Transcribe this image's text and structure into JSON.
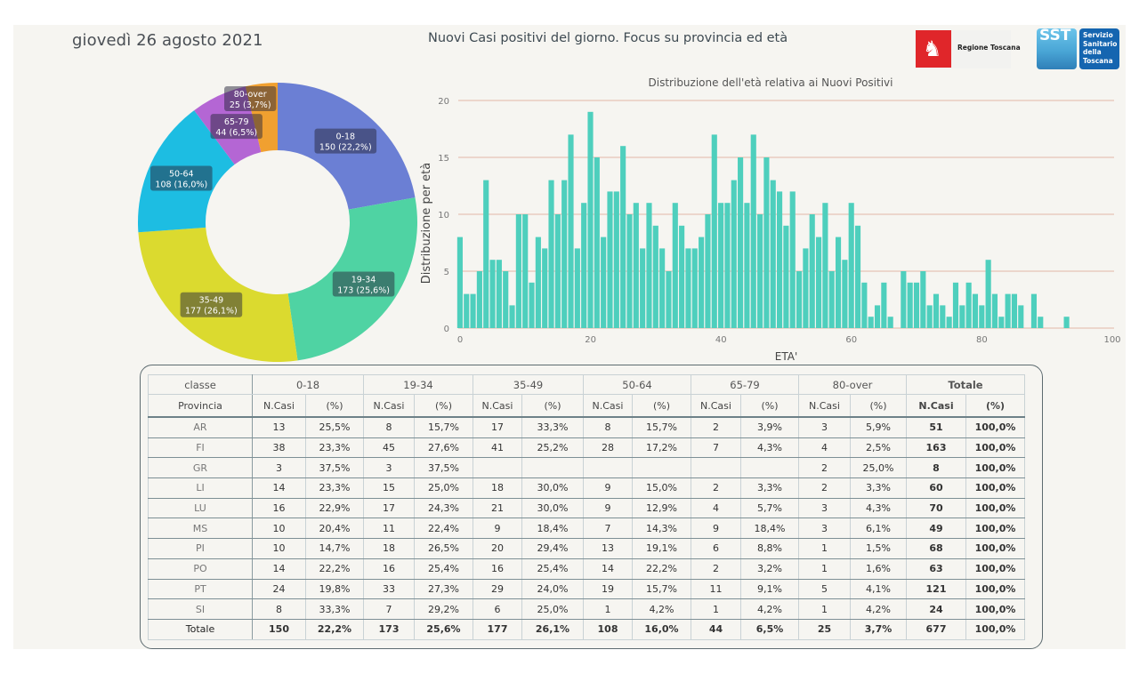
{
  "header": {
    "date": "giovedì 26 agosto 2021",
    "title": "Nuovi Casi positivi del giorno. Focus su provincia ed età",
    "logo_region": "Regione Toscana",
    "logo_sst_short": "SST",
    "logo_sst_full": "Servizio\nSanitario\ndella\nToscana"
  },
  "chart_data": [
    {
      "type": "pie",
      "variant": "donut",
      "start": "top",
      "direction": "clockwise",
      "slices": [
        {
          "label": "0-18",
          "value": 150,
          "pct": "22,2%",
          "color": "#6b7fd4"
        },
        {
          "label": "19-34",
          "value": 173,
          "pct": "25,6%",
          "color": "#4fd3a3"
        },
        {
          "label": "35-49",
          "value": 177,
          "pct": "26,1%",
          "color": "#dbda2f"
        },
        {
          "label": "50-64",
          "value": 108,
          "pct": "16,0%",
          "color": "#1dbde2"
        },
        {
          "label": "65-79",
          "value": 44,
          "pct": "6,5%",
          "color": "#b466d4"
        },
        {
          "label": "80-over",
          "value": 25,
          "pct": "3,7%",
          "color": "#f0a030"
        }
      ]
    },
    {
      "type": "bar",
      "title": "Distribuzione dell'età relativa ai Nuovi Positivi",
      "xlabel": "ETA'",
      "ylabel": "Distribuzione per età",
      "xlim": [
        0,
        100
      ],
      "ylim": [
        0,
        20
      ],
      "xticks": [
        0,
        20,
        40,
        60,
        80,
        100
      ],
      "yticks": [
        0,
        5,
        10,
        15,
        20
      ],
      "grid": "horizontal",
      "bar_color": "#4ecfbd",
      "grid_color": "#e2b7a8",
      "x": [
        0,
        1,
        2,
        3,
        4,
        5,
        6,
        7,
        8,
        9,
        10,
        11,
        12,
        13,
        14,
        15,
        16,
        17,
        18,
        19,
        20,
        21,
        22,
        23,
        24,
        25,
        26,
        27,
        28,
        29,
        30,
        31,
        32,
        33,
        34,
        35,
        36,
        37,
        38,
        39,
        40,
        41,
        42,
        43,
        44,
        45,
        46,
        47,
        48,
        49,
        50,
        51,
        52,
        53,
        54,
        55,
        56,
        57,
        58,
        59,
        60,
        61,
        62,
        63,
        64,
        65,
        66,
        67,
        68,
        69,
        70,
        71,
        72,
        73,
        74,
        75,
        76,
        77,
        78,
        79,
        80,
        81,
        82,
        83,
        84,
        85,
        86,
        87,
        88,
        89,
        90,
        91,
        92,
        93
      ],
      "values": [
        8,
        3,
        3,
        5,
        13,
        6,
        6,
        5,
        2,
        10,
        10,
        4,
        8,
        7,
        13,
        10,
        13,
        17,
        7,
        11,
        19,
        15,
        8,
        12,
        12,
        16,
        10,
        11,
        7,
        11,
        9,
        7,
        5,
        11,
        9,
        7,
        7,
        8,
        10,
        17,
        11,
        11,
        13,
        15,
        11,
        17,
        10,
        15,
        13,
        12,
        9,
        12,
        5,
        7,
        10,
        8,
        11,
        5,
        8,
        6,
        11,
        9,
        4,
        1,
        2,
        4,
        1,
        0,
        5,
        4,
        4,
        5,
        2,
        3,
        2,
        1,
        4,
        2,
        4,
        3,
        2,
        6,
        3,
        1,
        3,
        3,
        2,
        0,
        3,
        1,
        0,
        0,
        0,
        1
      ]
    }
  ],
  "table": {
    "h_classe": "classe",
    "h_provincia": "Provincia",
    "groups": [
      "0-18",
      "19-34",
      "35-49",
      "50-64",
      "65-79",
      "80-over"
    ],
    "total_group": "Totale",
    "col_n": "N.Casi",
    "col_pct": "(%)",
    "rows": [
      {
        "prov": "AR",
        "cells": [
          [
            "13",
            "25,5%"
          ],
          [
            "8",
            "15,7%"
          ],
          [
            "17",
            "33,3%"
          ],
          [
            "8",
            "15,7%"
          ],
          [
            "2",
            "3,9%"
          ],
          [
            "3",
            "5,9%"
          ]
        ],
        "tot": "51",
        "tot_pct": "100,0%"
      },
      {
        "prov": "FI",
        "cells": [
          [
            "38",
            "23,3%"
          ],
          [
            "45",
            "27,6%"
          ],
          [
            "41",
            "25,2%"
          ],
          [
            "28",
            "17,2%"
          ],
          [
            "7",
            "4,3%"
          ],
          [
            "4",
            "2,5%"
          ]
        ],
        "tot": "163",
        "tot_pct": "100,0%"
      },
      {
        "prov": "GR",
        "cells": [
          [
            "3",
            "37,5%"
          ],
          [
            "3",
            "37,5%"
          ],
          [
            "",
            ""
          ],
          [
            "",
            ""
          ],
          [
            "",
            ""
          ],
          [
            "2",
            "25,0%"
          ]
        ],
        "tot": "8",
        "tot_pct": "100,0%"
      },
      {
        "prov": "LI",
        "cells": [
          [
            "14",
            "23,3%"
          ],
          [
            "15",
            "25,0%"
          ],
          [
            "18",
            "30,0%"
          ],
          [
            "9",
            "15,0%"
          ],
          [
            "2",
            "3,3%"
          ],
          [
            "2",
            "3,3%"
          ]
        ],
        "tot": "60",
        "tot_pct": "100,0%"
      },
      {
        "prov": "LU",
        "cells": [
          [
            "16",
            "22,9%"
          ],
          [
            "17",
            "24,3%"
          ],
          [
            "21",
            "30,0%"
          ],
          [
            "9",
            "12,9%"
          ],
          [
            "4",
            "5,7%"
          ],
          [
            "3",
            "4,3%"
          ]
        ],
        "tot": "70",
        "tot_pct": "100,0%"
      },
      {
        "prov": "MS",
        "cells": [
          [
            "10",
            "20,4%"
          ],
          [
            "11",
            "22,4%"
          ],
          [
            "9",
            "18,4%"
          ],
          [
            "7",
            "14,3%"
          ],
          [
            "9",
            "18,4%"
          ],
          [
            "3",
            "6,1%"
          ]
        ],
        "tot": "49",
        "tot_pct": "100,0%"
      },
      {
        "prov": "PI",
        "cells": [
          [
            "10",
            "14,7%"
          ],
          [
            "18",
            "26,5%"
          ],
          [
            "20",
            "29,4%"
          ],
          [
            "13",
            "19,1%"
          ],
          [
            "6",
            "8,8%"
          ],
          [
            "1",
            "1,5%"
          ]
        ],
        "tot": "68",
        "tot_pct": "100,0%"
      },
      {
        "prov": "PO",
        "cells": [
          [
            "14",
            "22,2%"
          ],
          [
            "16",
            "25,4%"
          ],
          [
            "16",
            "25,4%"
          ],
          [
            "14",
            "22,2%"
          ],
          [
            "2",
            "3,2%"
          ],
          [
            "1",
            "1,6%"
          ]
        ],
        "tot": "63",
        "tot_pct": "100,0%"
      },
      {
        "prov": "PT",
        "cells": [
          [
            "24",
            "19,8%"
          ],
          [
            "33",
            "27,3%"
          ],
          [
            "29",
            "24,0%"
          ],
          [
            "19",
            "15,7%"
          ],
          [
            "11",
            "9,1%"
          ],
          [
            "5",
            "4,1%"
          ]
        ],
        "tot": "121",
        "tot_pct": "100,0%"
      },
      {
        "prov": "SI",
        "cells": [
          [
            "8",
            "33,3%"
          ],
          [
            "7",
            "29,2%"
          ],
          [
            "6",
            "25,0%"
          ],
          [
            "1",
            "4,2%"
          ],
          [
            "1",
            "4,2%"
          ],
          [
            "1",
            "4,2%"
          ]
        ],
        "tot": "24",
        "tot_pct": "100,0%"
      }
    ],
    "total_row": {
      "prov": "Totale",
      "cells": [
        [
          "150",
          "22,2%"
        ],
        [
          "173",
          "25,6%"
        ],
        [
          "177",
          "26,1%"
        ],
        [
          "108",
          "16,0%"
        ],
        [
          "44",
          "6,5%"
        ],
        [
          "25",
          "3,7%"
        ]
      ],
      "tot": "677",
      "tot_pct": "100,0%"
    }
  }
}
